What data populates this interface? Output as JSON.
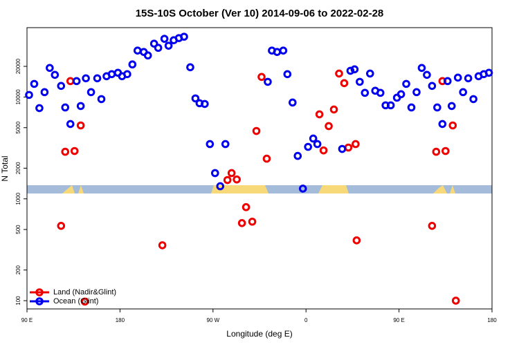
{
  "chart_data": {
    "type": "scatter",
    "title": "15S-10S October (Ver 10)   2014-09-06 to 2022-02-28",
    "xlabel": "Longitude (deg E)",
    "ylabel": "N Total",
    "xlim": [
      90,
      540
    ],
    "ylim": [
      83,
      48000
    ],
    "ylog": true,
    "xticks": [
      {
        "value": 90,
        "label": "90 E"
      },
      180,
      {
        "value": 270,
        "label": "90 W"
      },
      {
        "value": 360,
        "label": "0"
      },
      {
        "value": 450,
        "label": "90 E"
      },
      {
        "value": 540,
        "label": "180"
      }
    ],
    "yticks": [
      100,
      200,
      500,
      1000,
      2000,
      5000,
      10000,
      20000
    ],
    "legend": "lower left",
    "series": [
      {
        "name": "Land (Nadir&Glint)",
        "color": "#ee0000",
        "x": [
          123,
          127,
          132,
          136,
          142,
          146,
          221,
          284,
          288,
          293,
          298,
          302,
          308,
          312,
          317,
          322,
          373,
          377,
          382,
          387,
          392,
          397,
          401,
          408,
          409,
          482,
          486,
          492,
          495,
          502,
          505
        ],
        "values": [
          543,
          2900,
          14330,
          2950,
          5260,
          98,
          350,
          1530,
          1790,
          1550,
          578,
          829,
          597,
          4640,
          15750,
          2480,
          6760,
          2990,
          5180,
          7540,
          17000,
          13680,
          3190,
          3450,
          391,
          543,
          2900,
          14330,
          2950,
          5260,
          100
        ]
      },
      {
        "name": "Ocean (Glint)",
        "color": "#0000ee",
        "x": [
          92,
          97,
          102,
          107,
          112,
          117,
          123,
          127,
          132,
          138,
          142,
          147,
          152,
          158,
          162,
          167,
          172,
          178,
          182,
          187,
          192,
          197,
          203,
          207,
          213,
          217,
          223,
          227,
          232,
          237,
          242,
          248,
          253,
          257,
          262,
          267,
          272,
          277,
          282,
          323,
          327,
          332,
          338,
          342,
          347,
          352,
          357,
          362,
          367,
          371,
          395,
          403,
          407,
          412,
          417,
          422,
          427,
          432,
          437,
          442,
          448,
          452,
          457,
          462,
          467,
          472,
          477,
          482,
          487,
          492,
          497,
          501,
          507,
          512,
          517,
          522,
          527,
          532,
          537
        ],
        "values": [
          10480,
          13460,
          7780,
          11160,
          19300,
          16500,
          12850,
          7900,
          5430,
          14330,
          8160,
          15270,
          11160,
          15270,
          9540,
          16000,
          16760,
          17300,
          16000,
          16760,
          20890,
          28570,
          27700,
          25600,
          33400,
          30400,
          37300,
          31900,
          36100,
          37900,
          39100,
          19600,
          9690,
          8690,
          8550,
          3450,
          1790,
          1330,
          3450,
          14100,
          28570,
          27700,
          28570,
          16760,
          8830,
          2640,
          1260,
          3240,
          3910,
          3450,
          3090,
          18100,
          18700,
          14100,
          10990,
          17000,
          11520,
          10990,
          8290,
          8290,
          9850,
          10650,
          13460,
          7900,
          11160,
          19300,
          16500,
          12850,
          7900,
          5430,
          14330,
          8160,
          15500,
          11160,
          15270,
          9540,
          16000,
          16760,
          17300
        ]
      }
    ]
  }
}
